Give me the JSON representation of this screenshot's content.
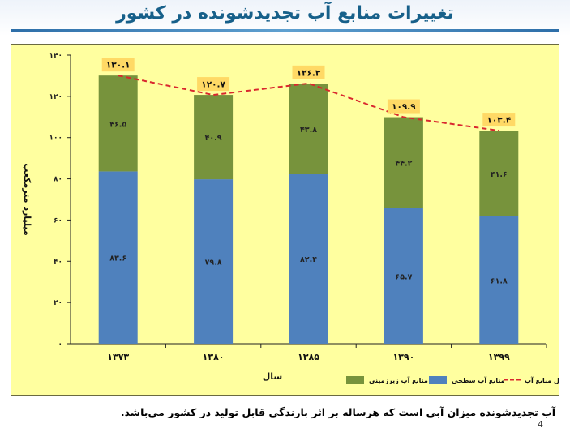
{
  "slide": {
    "title": "تغییرات منابع آب تجدیدشونده در کشور",
    "footer": "آب تجدیدشونده میزان آبی است که هرساله بر اثر بارندگی قابل تولید در کشور می‌باشد.",
    "page_number": "4"
  },
  "colors": {
    "surface": "#4f81bd",
    "ground": "#77933c",
    "total_line": "#d9272e",
    "total_box": "#ffd965",
    "plot_bg": "#ffff9f",
    "title": "#17608a"
  },
  "chart_data": {
    "type": "bar",
    "stacked": true,
    "categories": [
      "۱۳۷۳",
      "۱۳۸۰",
      "۱۳۸۵",
      "۱۳۹۰",
      "۱۳۹۹"
    ],
    "series": [
      {
        "name": "منابع آب سطحی",
        "values": [
          83.6,
          79.8,
          82.4,
          65.7,
          61.8
        ],
        "labels": [
          "۸۳.۶",
          "۷۹.۸",
          "۸۲.۴",
          "۶۵.۷",
          "۶۱.۸"
        ],
        "color": "#4f81bd"
      },
      {
        "name": "منابع آب زیرزمینی",
        "values": [
          46.5,
          40.9,
          43.8,
          44.2,
          41.6
        ],
        "labels": [
          "۴۶.۵",
          "۴۰.۹",
          "۴۳.۸",
          "۴۴.۲",
          "۴۱.۶"
        ],
        "color": "#77933c"
      }
    ],
    "total": {
      "name": "کل منابع آب",
      "values": [
        130.1,
        120.7,
        126.3,
        109.9,
        103.4
      ],
      "labels": [
        "۱۳۰.۱",
        "۱۲۰.۷",
        "۱۲۶.۳",
        "۱۰۹.۹",
        "۱۰۳.۴"
      ],
      "line_style": "dashed",
      "color": "#d9272e"
    },
    "xlabel": "سال",
    "ylabel": "میلیارد مترمکعب",
    "ylim": [
      0,
      140
    ],
    "yticks": [
      0,
      20,
      40,
      60,
      80,
      100,
      120,
      140
    ],
    "ytick_labels": [
      "۰",
      "۲۰",
      "۴۰",
      "۶۰",
      "۸۰",
      "۱۰۰",
      "۱۲۰",
      "۱۴۰"
    ],
    "legend": {
      "placement": "bottom",
      "items": [
        "منابع آب زیرزمینی",
        "منابع آب سطحی",
        "کل منابع آب"
      ]
    },
    "grid": false
  }
}
